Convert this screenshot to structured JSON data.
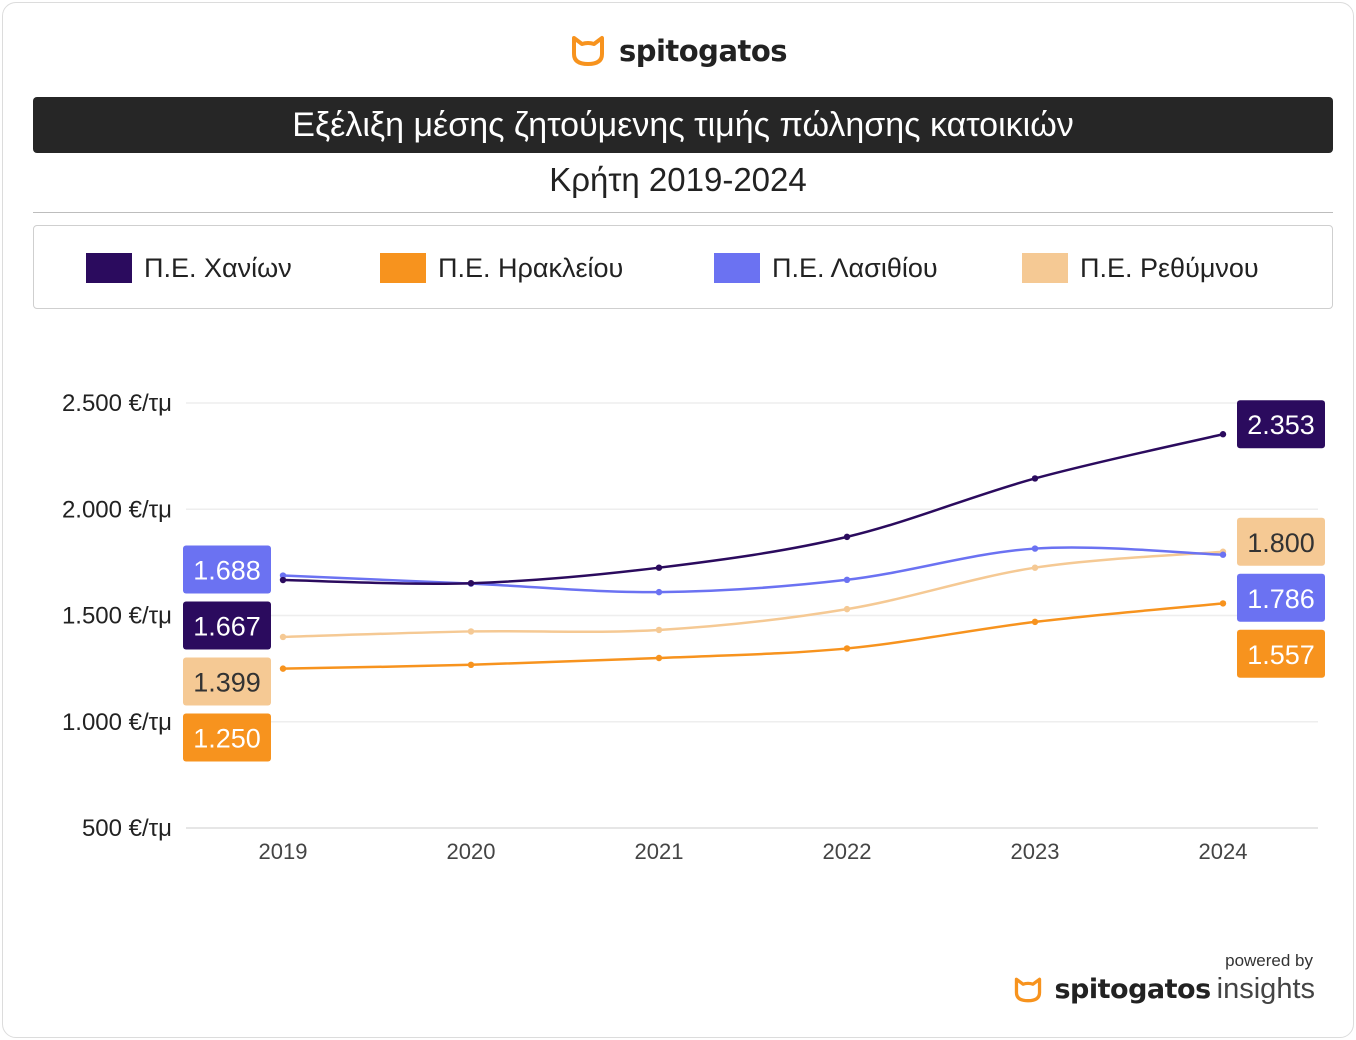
{
  "brand": {
    "name": "spitogatos",
    "logo_icon": "cat-head-icon",
    "color": "#F7931E"
  },
  "title": "Εξέλιξη μέσης ζητούμενης τιμής πώλησης κατοικιών",
  "subtitle": "Κρήτη 2019-2024",
  "footer": {
    "powered_by": "powered by",
    "brand": "spitogatos",
    "product": "insights"
  },
  "chart_data": {
    "type": "line",
    "title": "Εξέλιξη μέσης ζητούμενης τιμής πώλησης κατοικιών",
    "subtitle": "Κρήτη 2019-2024",
    "xlabel": "",
    "ylabel": "",
    "categories": [
      "2019",
      "2020",
      "2021",
      "2022",
      "2023",
      "2024"
    ],
    "y_ticks": [
      {
        "value": 500,
        "label": "500 €/τμ"
      },
      {
        "value": 1000,
        "label": "1.000 €/τμ"
      },
      {
        "value": 1500,
        "label": "1.500 €/τμ"
      },
      {
        "value": 2000,
        "label": "2.000 €/τμ"
      },
      {
        "value": 2500,
        "label": "2.500 €/τμ"
      }
    ],
    "ylim": [
      500,
      2500
    ],
    "grid": true,
    "legend_position": "top",
    "series": [
      {
        "name": "Π.Ε. Χανίων",
        "color": "#2B0B5E",
        "label_text_color": "#ffffff",
        "values": [
          1667,
          1652,
          1725,
          1870,
          2145,
          2353
        ],
        "start_label": "1.667",
        "end_label": "2.353"
      },
      {
        "name": "Π.Ε. Ηρακλείου",
        "color": "#F7931E",
        "label_text_color": "#ffffff",
        "values": [
          1250,
          1268,
          1300,
          1345,
          1470,
          1557
        ],
        "start_label": "1.250",
        "end_label": "1.557"
      },
      {
        "name": "Π.Ε. Λασιθίου",
        "color": "#6B72F2",
        "label_text_color": "#ffffff",
        "values": [
          1688,
          1650,
          1610,
          1668,
          1815,
          1786
        ],
        "start_label": "1.688",
        "end_label": "1.786"
      },
      {
        "name": "Π.Ε. Ρεθύμνου",
        "color": "#F5C994",
        "label_text_color": "#333333",
        "values": [
          1399,
          1425,
          1432,
          1530,
          1725,
          1800
        ],
        "start_label": "1.399",
        "end_label": "1.800"
      }
    ]
  }
}
